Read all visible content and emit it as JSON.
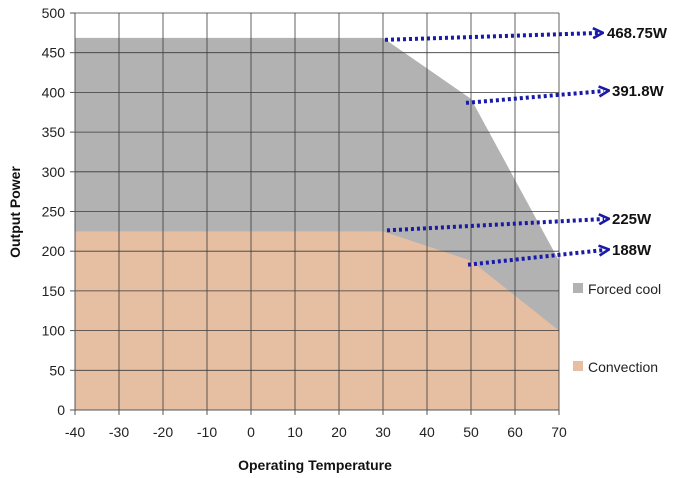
{
  "chart_data": {
    "type": "area",
    "xlabel": "Operating Temperature",
    "ylabel": "Output Power",
    "xlim": [
      -40,
      70
    ],
    "ylim": [
      0,
      500
    ],
    "x_ticks": [
      -40,
      -30,
      -20,
      -10,
      0,
      10,
      20,
      30,
      40,
      50,
      60,
      70
    ],
    "y_ticks": [
      0,
      50,
      100,
      150,
      200,
      250,
      300,
      350,
      400,
      450,
      500
    ],
    "grid": true,
    "legend_position": "right",
    "series": [
      {
        "name": "Forced cool",
        "color": "#b2b2b2",
        "x": [
          -40,
          30,
          50,
          70
        ],
        "y": [
          468.75,
          468.75,
          391.8,
          188
        ]
      },
      {
        "name": "Convection",
        "color": "#e6bfa3",
        "x": [
          -40,
          30,
          50,
          70
        ],
        "y": [
          225,
          225,
          188,
          100
        ]
      }
    ],
    "annotations": [
      {
        "text": "468.75W",
        "x": 30,
        "y": 468.75
      },
      {
        "text": "391.8W",
        "x": 50,
        "y": 391.8
      },
      {
        "text": "225W",
        "x": 30,
        "y": 225
      },
      {
        "text": "188W",
        "x": 50,
        "y": 188
      }
    ],
    "annotation_arrow_color": "#1a1aa8"
  }
}
